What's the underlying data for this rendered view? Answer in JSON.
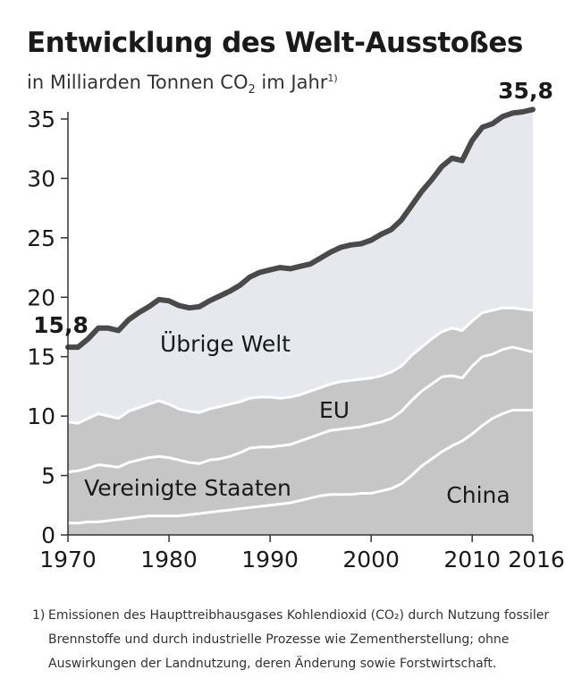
{
  "title": "Entwicklung des Welt-Ausstoßes",
  "subtitle": {
    "pre": "in Milliarden Tonnen CO",
    "sub": "2",
    "post": " im Jahr",
    "sup": "1)"
  },
  "footnote": {
    "mark": "1)",
    "lines": [
      "Emissionen des Haupttreibhausgases Kohlendioxid (CO₂) durch Nutzung fossiler",
      "Brennstoffe und durch industrielle Prozesse wie Zementherstellung; ohne",
      "Auswirkungen der Landnutzung, deren Änderung sowie Forstwirtschaft."
    ]
  },
  "colors": {
    "world_fill": "#e6e8ed",
    "other_fill": "#c6c6c6",
    "band_line": "#ffffff",
    "total_line": "#4a4a4a",
    "axis": "#333333",
    "text": "#1a1a1a"
  },
  "chart_data": {
    "type": "area",
    "stacked": true,
    "x_ticks": [
      "1970",
      "1980",
      "1990",
      "2000",
      "2010",
      "2016"
    ],
    "y_ticks": [
      "0",
      "5",
      "10",
      "15",
      "20",
      "25",
      "30",
      "35"
    ],
    "ylim": [
      0,
      35
    ],
    "xlim": [
      1970,
      2016
    ],
    "x": [
      1970,
      1971,
      1972,
      1973,
      1974,
      1975,
      1976,
      1977,
      1978,
      1979,
      1980,
      1981,
      1982,
      1983,
      1984,
      1985,
      1986,
      1987,
      1988,
      1989,
      1990,
      1991,
      1992,
      1993,
      1994,
      1995,
      1996,
      1997,
      1998,
      1999,
      2000,
      2001,
      2002,
      2003,
      2004,
      2005,
      2006,
      2007,
      2008,
      2009,
      2010,
      2011,
      2012,
      2013,
      2014,
      2015,
      2016
    ],
    "series": [
      {
        "name": "China",
        "cumulative": [
          1.0,
          1.0,
          1.1,
          1.1,
          1.2,
          1.3,
          1.4,
          1.5,
          1.6,
          1.6,
          1.6,
          1.6,
          1.7,
          1.8,
          1.9,
          2.0,
          2.1,
          2.2,
          2.3,
          2.4,
          2.5,
          2.6,
          2.7,
          2.9,
          3.1,
          3.3,
          3.4,
          3.4,
          3.4,
          3.5,
          3.5,
          3.7,
          3.9,
          4.3,
          5.0,
          5.8,
          6.4,
          7.0,
          7.5,
          7.9,
          8.5,
          9.2,
          9.8,
          10.2,
          10.5,
          10.5,
          10.5
        ]
      },
      {
        "name": "Vereinigte Staaten",
        "cumulative": [
          5.3,
          5.4,
          5.6,
          5.9,
          5.8,
          5.7,
          6.1,
          6.3,
          6.5,
          6.6,
          6.5,
          6.3,
          6.1,
          6.0,
          6.3,
          6.4,
          6.6,
          6.9,
          7.3,
          7.4,
          7.4,
          7.5,
          7.6,
          7.9,
          8.2,
          8.5,
          8.8,
          8.9,
          9.0,
          9.1,
          9.3,
          9.5,
          9.8,
          10.4,
          11.3,
          12.1,
          12.7,
          13.3,
          13.4,
          13.2,
          14.2,
          15.0,
          15.2,
          15.6,
          15.8,
          15.6,
          15.4
        ]
      },
      {
        "name": "EU",
        "cumulative": [
          9.5,
          9.4,
          9.8,
          10.2,
          10.0,
          9.8,
          10.4,
          10.7,
          11.0,
          11.3,
          11.0,
          10.6,
          10.4,
          10.3,
          10.6,
          10.8,
          11.0,
          11.2,
          11.5,
          11.6,
          11.6,
          11.5,
          11.6,
          11.8,
          12.1,
          12.4,
          12.7,
          12.9,
          13.0,
          13.1,
          13.2,
          13.4,
          13.7,
          14.2,
          15.1,
          15.8,
          16.5,
          17.1,
          17.4,
          17.2,
          18.0,
          18.7,
          18.9,
          19.1,
          19.1,
          19.0,
          18.9
        ]
      },
      {
        "name": "Übrige Welt",
        "cumulative": [
          15.8,
          15.8,
          16.5,
          17.4,
          17.4,
          17.2,
          18.1,
          18.7,
          19.2,
          19.8,
          19.7,
          19.3,
          19.1,
          19.2,
          19.7,
          20.1,
          20.5,
          21.0,
          21.7,
          22.1,
          22.3,
          22.5,
          22.4,
          22.6,
          22.8,
          23.3,
          23.8,
          24.2,
          24.4,
          24.5,
          24.8,
          25.3,
          25.7,
          26.5,
          27.7,
          28.9,
          29.9,
          31.0,
          31.7,
          31.5,
          33.2,
          34.3,
          34.6,
          35.2,
          35.5,
          35.6,
          35.8
        ]
      }
    ],
    "series_labels": [
      "China",
      "Vereinigte Staaten",
      "EU",
      "Übrige Welt"
    ],
    "annotations": {
      "start": "15,8",
      "end": "35,8"
    }
  }
}
